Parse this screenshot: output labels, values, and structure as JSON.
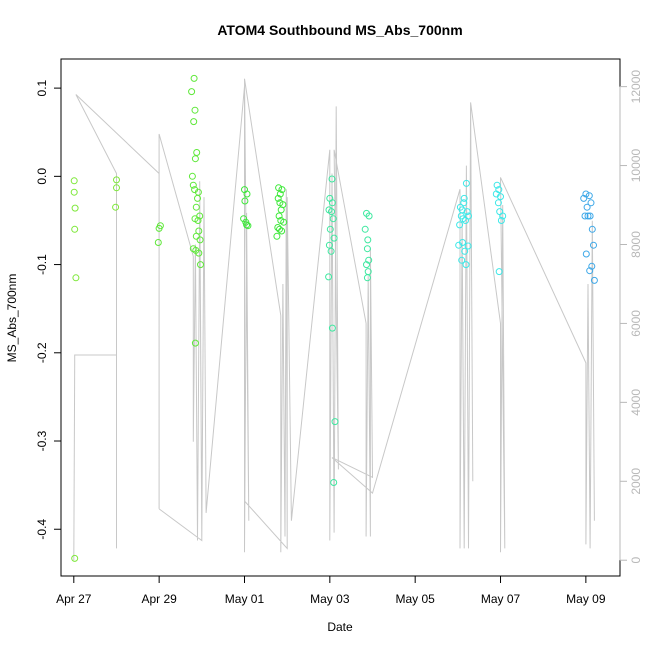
{
  "chart_data": {
    "type": "scatter",
    "title": "ATOM4 Southbound MS_Abs_700nm",
    "xlabel": "Date",
    "ylabel": "MS_Abs_700nm",
    "xlim": [
      -0.3,
      12.8
    ],
    "ylim": [
      -0.453,
      0.133
    ],
    "y2lim": [
      -400,
      12700
    ],
    "x_ticks": [
      {
        "label": "Apr 27",
        "value": 0
      },
      {
        "label": "Apr 29",
        "value": 2
      },
      {
        "label": "May 01",
        "value": 4
      },
      {
        "label": "May 03",
        "value": 6
      },
      {
        "label": "May 05",
        "value": 8
      },
      {
        "label": "May 07",
        "value": 10
      },
      {
        "label": "May 09",
        "value": 12
      }
    ],
    "y_ticks": [
      "0.1",
      "0.0",
      "-0.1",
      "-0.2",
      "-0.3",
      "-0.4"
    ],
    "y2_ticks": [
      "0",
      "2000",
      "4000",
      "6000",
      "8000",
      "10000",
      "12000"
    ],
    "series": [
      {
        "name": "MS_Abs_700nm",
        "color": "#7ee83a",
        "points": [
          [
            0.01,
            -0.005
          ],
          [
            0.01,
            -0.018
          ],
          [
            0.03,
            -0.036
          ],
          [
            0.02,
            -0.06
          ],
          [
            0.05,
            -0.115
          ],
          [
            0.02,
            -0.433
          ],
          [
            1.0,
            -0.004
          ],
          [
            1.0,
            -0.013
          ],
          [
            0.98,
            -0.035
          ]
        ]
      },
      {
        "name": "MS_Abs_700nm",
        "color": "#5fe83a",
        "points": [
          [
            2.03,
            -0.056
          ],
          [
            2.0,
            -0.059
          ],
          [
            1.98,
            -0.075
          ],
          [
            2.82,
            0.111
          ],
          [
            2.76,
            0.096
          ],
          [
            2.84,
            0.075
          ],
          [
            2.81,
            0.062
          ],
          [
            2.88,
            0.027
          ],
          [
            2.85,
            0.02
          ],
          [
            2.78,
            0.0
          ],
          [
            2.8,
            -0.01
          ],
          [
            2.83,
            -0.015
          ],
          [
            2.92,
            -0.018
          ],
          [
            2.9,
            -0.025
          ],
          [
            2.87,
            -0.035
          ],
          [
            2.95,
            -0.045
          ],
          [
            2.84,
            -0.048
          ],
          [
            2.91,
            -0.05
          ],
          [
            2.93,
            -0.062
          ],
          [
            2.87,
            -0.068
          ],
          [
            2.96,
            -0.072
          ],
          [
            2.8,
            -0.082
          ],
          [
            2.86,
            -0.084
          ],
          [
            2.93,
            -0.087
          ],
          [
            2.97,
            -0.1
          ],
          [
            2.85,
            -0.189
          ]
        ]
      },
      {
        "name": "MS_Abs_700nm",
        "color": "#3ee83a",
        "points": [
          [
            4.0,
            -0.015
          ],
          [
            4.06,
            -0.02
          ],
          [
            4.01,
            -0.028
          ],
          [
            3.98,
            -0.048
          ],
          [
            4.03,
            -0.052
          ],
          [
            4.08,
            -0.056
          ],
          [
            4.05,
            -0.055
          ],
          [
            4.8,
            -0.013
          ],
          [
            4.88,
            -0.015
          ],
          [
            4.84,
            -0.02
          ],
          [
            4.79,
            -0.025
          ],
          [
            4.83,
            -0.03
          ],
          [
            4.9,
            -0.032
          ],
          [
            4.86,
            -0.038
          ],
          [
            4.81,
            -0.045
          ],
          [
            4.85,
            -0.05
          ],
          [
            4.92,
            -0.052
          ],
          [
            4.78,
            -0.058
          ],
          [
            4.82,
            -0.06
          ],
          [
            4.76,
            -0.068
          ],
          [
            4.87,
            -0.062
          ]
        ]
      },
      {
        "name": "MS_Abs_700nm",
        "color": "#3ee8a0",
        "points": [
          [
            6.05,
            -0.003
          ],
          [
            6.0,
            -0.025
          ],
          [
            6.06,
            -0.03
          ],
          [
            5.98,
            -0.038
          ],
          [
            6.04,
            -0.04
          ],
          [
            6.08,
            -0.048
          ],
          [
            6.01,
            -0.06
          ],
          [
            6.1,
            -0.07
          ],
          [
            5.99,
            -0.078
          ],
          [
            6.03,
            -0.085
          ],
          [
            5.97,
            -0.114
          ],
          [
            6.06,
            -0.172
          ],
          [
            6.12,
            -0.278
          ],
          [
            6.09,
            -0.347
          ],
          [
            6.86,
            -0.042
          ],
          [
            6.92,
            -0.045
          ],
          [
            6.83,
            -0.06
          ],
          [
            6.89,
            -0.072
          ],
          [
            6.88,
            -0.082
          ],
          [
            6.91,
            -0.095
          ],
          [
            6.86,
            -0.1
          ],
          [
            6.9,
            -0.108
          ],
          [
            6.88,
            -0.115
          ]
        ]
      },
      {
        "name": "MS_Abs_700nm",
        "color": "#3ee8e8",
        "points": [
          [
            9.06,
            -0.035
          ],
          [
            9.1,
            -0.038
          ],
          [
            9.15,
            -0.025
          ],
          [
            9.2,
            -0.008
          ],
          [
            9.08,
            -0.045
          ],
          [
            9.22,
            -0.04
          ],
          [
            9.12,
            -0.048
          ],
          [
            9.04,
            -0.055
          ],
          [
            9.18,
            -0.05
          ],
          [
            9.25,
            -0.045
          ],
          [
            9.14,
            -0.03
          ],
          [
            9.02,
            -0.078
          ],
          [
            9.11,
            -0.075
          ],
          [
            9.24,
            -0.079
          ],
          [
            9.16,
            -0.085
          ],
          [
            9.09,
            -0.095
          ],
          [
            9.19,
            -0.1
          ],
          [
            9.92,
            -0.01
          ],
          [
            9.96,
            -0.015
          ],
          [
            9.9,
            -0.02
          ],
          [
            10.0,
            -0.023
          ],
          [
            9.95,
            -0.03
          ],
          [
            10.05,
            -0.045
          ],
          [
            9.98,
            -0.04
          ],
          [
            10.02,
            -0.05
          ],
          [
            9.97,
            -0.108
          ]
        ]
      },
      {
        "name": "MS_Abs_700nm",
        "color": "#3ea8e8",
        "points": [
          [
            12.0,
            -0.02
          ],
          [
            12.08,
            -0.022
          ],
          [
            11.95,
            -0.025
          ],
          [
            12.12,
            -0.03
          ],
          [
            12.03,
            -0.035
          ],
          [
            11.98,
            -0.045
          ],
          [
            12.1,
            -0.045
          ],
          [
            12.05,
            -0.045
          ],
          [
            12.15,
            -0.06
          ],
          [
            12.18,
            -0.078
          ],
          [
            12.01,
            -0.088
          ],
          [
            12.14,
            -0.102
          ],
          [
            12.09,
            -0.107
          ],
          [
            12.2,
            -0.118
          ]
        ]
      }
    ],
    "secondary_line": {
      "name": "depth",
      "color": "#c8c8c8",
      "points": [
        [
          0.0,
          0
        ],
        [
          0.02,
          5000
        ],
        [
          0.02,
          5200
        ],
        [
          1.0,
          5200
        ],
        [
          1.0,
          300
        ],
        [
          1.0,
          9800
        ],
        [
          0.05,
          11800
        ],
        [
          2.0,
          9800
        ],
        [
          2.0,
          1300
        ],
        [
          2.0,
          10800
        ],
        [
          2.8,
          7700
        ],
        [
          2.8,
          3000
        ],
        [
          2.85,
          8000
        ],
        [
          2.9,
          500
        ],
        [
          2.95,
          9000
        ],
        [
          3.0,
          800
        ],
        [
          2.95,
          9600
        ],
        [
          3.0,
          500
        ],
        [
          2.0,
          1300
        ],
        [
          3.0,
          500
        ],
        [
          3.05,
          9200
        ],
        [
          3.1,
          1200
        ],
        [
          4.0,
          12000
        ],
        [
          4.0,
          200
        ],
        [
          4.05,
          8800
        ],
        [
          4.1,
          1000
        ],
        [
          4.0,
          12200
        ],
        [
          4.85,
          6200
        ],
        [
          4.85,
          200
        ],
        [
          4.9,
          7000
        ],
        [
          4.95,
          600
        ],
        [
          4.98,
          9400
        ],
        [
          5.0,
          300
        ],
        [
          4.0,
          1500
        ],
        [
          5.0,
          300
        ],
        [
          5.0,
          9200
        ],
        [
          5.1,
          1000
        ],
        [
          6.0,
          10400
        ],
        [
          6.0,
          500
        ],
        [
          6.05,
          9800
        ],
        [
          6.1,
          700
        ],
        [
          6.15,
          11500
        ],
        [
          6.2,
          2300
        ],
        [
          6.1,
          10400
        ],
        [
          6.85,
          6000
        ],
        [
          6.85,
          600
        ],
        [
          6.9,
          7200
        ],
        [
          6.95,
          600
        ],
        [
          6.95,
          7900
        ],
        [
          7.0,
          2100
        ],
        [
          6.05,
          2600
        ],
        [
          7.0,
          1700
        ],
        [
          9.05,
          9400
        ],
        [
          9.05,
          300
        ],
        [
          9.1,
          8600
        ],
        [
          9.15,
          300
        ],
        [
          9.2,
          10000
        ],
        [
          9.25,
          300
        ],
        [
          9.3,
          11600
        ],
        [
          9.35,
          2000
        ],
        [
          9.3,
          11600
        ],
        [
          10.0,
          6000
        ],
        [
          10.0,
          200
        ],
        [
          10.05,
          9000
        ],
        [
          10.1,
          300
        ],
        [
          10.0,
          9700
        ],
        [
          12.0,
          5000
        ],
        [
          12.0,
          400
        ],
        [
          12.05,
          7000
        ],
        [
          12.1,
          300
        ],
        [
          12.15,
          8600
        ],
        [
          12.2,
          1000
        ]
      ]
    }
  }
}
